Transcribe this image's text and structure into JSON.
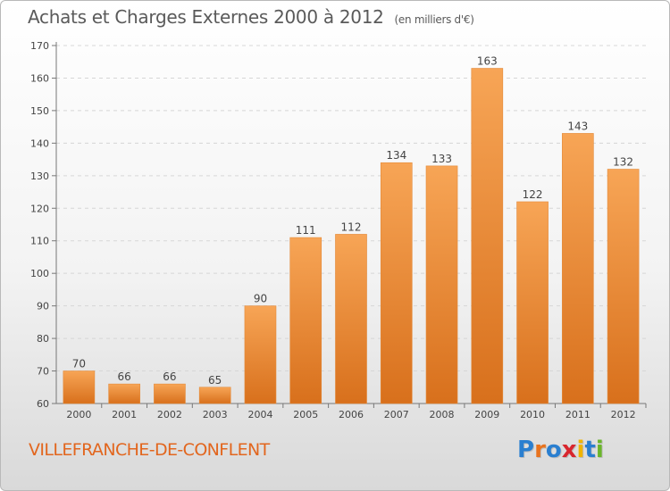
{
  "header": {
    "title": "Achats et Charges Externes 2000 à 2012",
    "subtitle": "(en milliers d'€)"
  },
  "footer": {
    "commune": "VILLEFRANCHE-DE-CONFLENT",
    "logo_text": "Proxiti"
  },
  "colors": {
    "bar_top": "#f7a556",
    "bar_bottom": "#d8701c",
    "commune": "#e2661e",
    "logo_letters": [
      "#2a7fd0",
      "#e8731e",
      "#2a7fd0",
      "#d8262e",
      "#f0b400",
      "#2a7fd0",
      "#6bb52b"
    ]
  },
  "chart_data": {
    "type": "bar",
    "categories": [
      "2000",
      "2001",
      "2002",
      "2003",
      "2004",
      "2005",
      "2006",
      "2007",
      "2008",
      "2009",
      "2010",
      "2011",
      "2012"
    ],
    "values": [
      70,
      66,
      66,
      65,
      90,
      111,
      112,
      134,
      133,
      163,
      122,
      143,
      132
    ],
    "ylim": [
      60,
      170
    ],
    "yticks": [
      60,
      70,
      80,
      90,
      100,
      110,
      120,
      130,
      140,
      150,
      160,
      170
    ],
    "grid": true
  }
}
